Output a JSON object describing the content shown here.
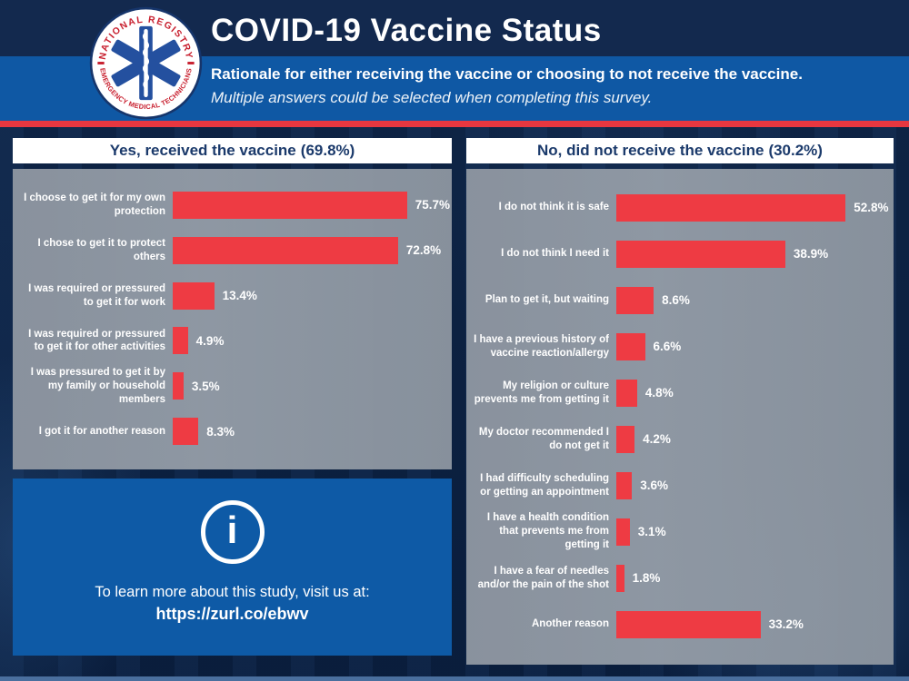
{
  "header": {
    "title": "COVID-19 Vaccine Status",
    "subtitle_line1": "Rationale for either receiving the vaccine or choosing to not receive the vaccine.",
    "subtitle_line2": "Multiple answers could be selected when completing this survey.",
    "logo": {
      "top_text": "NATIONAL REGISTRY",
      "bottom_text": "EMERGENCY MEDICAL TECHNICIANS",
      "icon": "star-of-life-icon"
    }
  },
  "info_box": {
    "icon": "info-icon",
    "icon_glyph": "i",
    "line1": "To learn more about this study, visit us at:",
    "link": "https://zurl.co/ebwv"
  },
  "colors": {
    "navy_band": "#13294e",
    "blue_band": "#0f58a4",
    "stripe_red": "#e73740",
    "bar_red": "#ee3b43",
    "panel_gray": "#8d96a1",
    "title_navy": "#1b3a6b",
    "info_blue": "#0e5aa6",
    "bottom_stripe": "#4a6f9e",
    "background_navy": "#0c2243"
  },
  "chart_data": [
    {
      "type": "bar",
      "orientation": "horizontal",
      "title": "Yes, received the vaccine (69.8%)",
      "title_main": "Yes, received the vaccine",
      "title_pct": "(69.8%)",
      "categories": [
        "I choose to get it for my own protection",
        "I chose to get it to protect others",
        "I was required or pressured to get it for work",
        "I was required or pressured to get it for other activities",
        "I was pressured to get it by my family or household members",
        "I got it for another reason"
      ],
      "values": [
        75.7,
        72.8,
        13.4,
        4.9,
        3.5,
        8.3
      ],
      "value_suffix": "%",
      "xlim": [
        0,
        89
      ],
      "bar_color": "#ee3b43",
      "grid": false,
      "legend": "none"
    },
    {
      "type": "bar",
      "orientation": "horizontal",
      "title": "No, did not receive the vaccine (30.2%)",
      "title_main": "No, did not receive the vaccine",
      "title_pct": "(30.2%)",
      "categories": [
        "I do not think it is safe",
        "I do not think I need it",
        "Plan to get it, but waiting",
        "I have a previous history of vaccine reaction/allergy",
        "My religion or culture prevents me from getting it",
        "My doctor recommended I do not get it",
        "I had difficulty scheduling or getting an appointment",
        "I have a health condition that prevents me from getting it",
        "I have a fear of needles and/or the pain of the shot",
        "Another reason"
      ],
      "values": [
        52.8,
        38.9,
        8.6,
        6.6,
        4.8,
        4.2,
        3.6,
        3.1,
        1.8,
        33.2
      ],
      "value_suffix": "%",
      "xlim": [
        0,
        63
      ],
      "bar_color": "#ee3b43",
      "grid": false,
      "legend": "none"
    }
  ]
}
